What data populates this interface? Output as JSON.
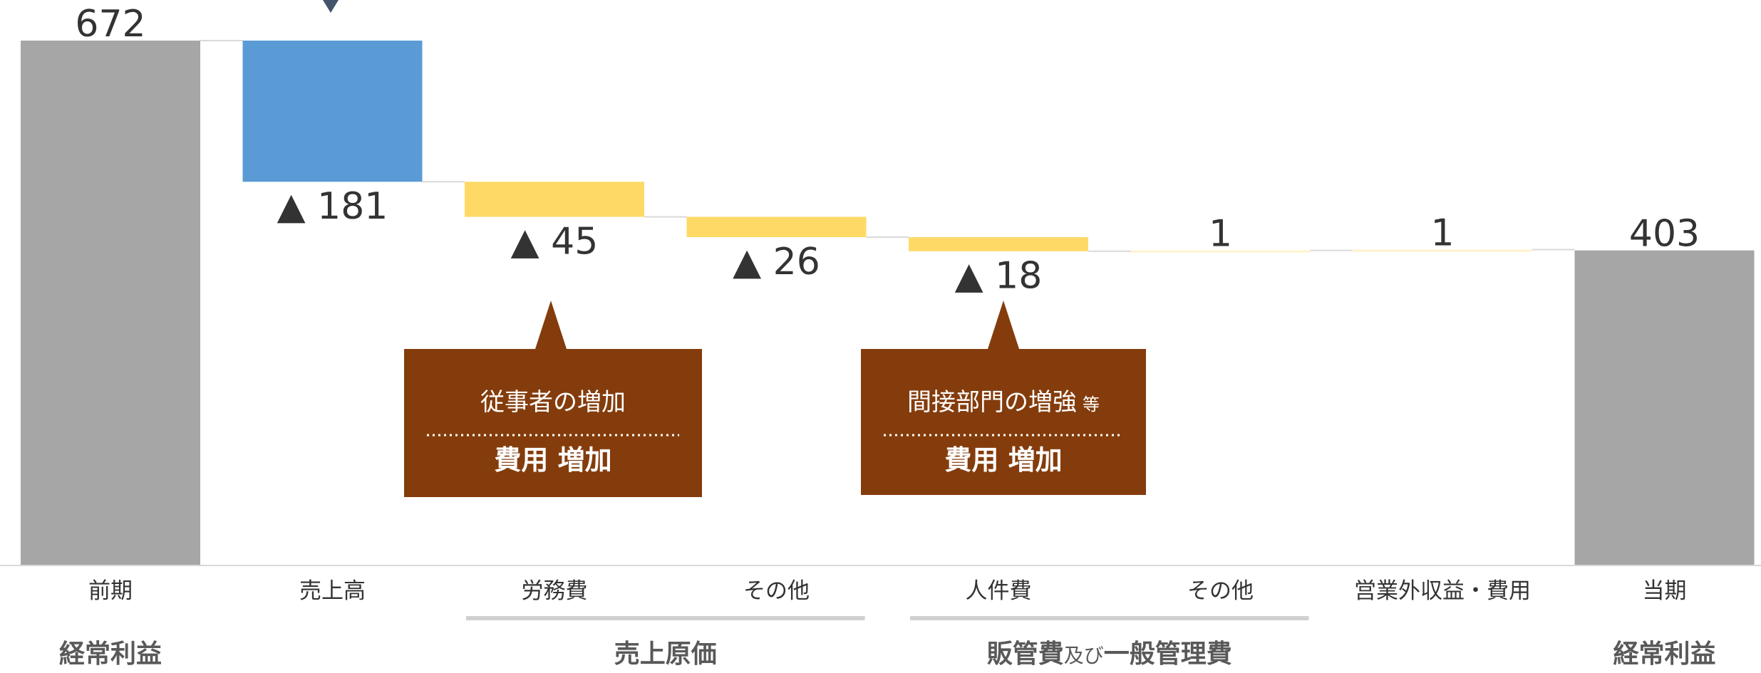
{
  "chart_data": {
    "type": "waterfall",
    "title": "",
    "ylim": [
      0,
      700
    ],
    "grid": false,
    "bars": [
      {
        "category": "前期",
        "value": 672,
        "kind": "total",
        "label": "672"
      },
      {
        "category": "売上高",
        "value": -181,
        "kind": "delta",
        "label": "▲ 181"
      },
      {
        "category": "労務費",
        "value": -45,
        "kind": "delta",
        "label": "▲ 45"
      },
      {
        "category": "その他",
        "value": -26,
        "kind": "delta",
        "label": "▲ 26"
      },
      {
        "category": "人件費",
        "value": -18,
        "kind": "delta",
        "label": "▲ 18"
      },
      {
        "category": "その他",
        "value": 1,
        "kind": "delta",
        "label": "1"
      },
      {
        "category": "営業外収益・費用",
        "value": 1,
        "kind": "delta",
        "label": "1"
      },
      {
        "category": "当期",
        "value": 403,
        "kind": "total",
        "label": "403"
      }
    ],
    "colors": {
      "total": "#a6a6a6",
      "sales": "#5b9bd5",
      "cost": "#ffd966",
      "small": "#fff2cc",
      "callout": "#843c0c",
      "connector": "#d9d9d9",
      "axis": "#d9d9d9",
      "group_line": "#d0d0d0",
      "text": "#333333",
      "arrow": "#44546a"
    },
    "groups": [
      {
        "label": "経常利益",
        "from": 0,
        "to": 0
      },
      {
        "label": "売上原価",
        "from": 2,
        "to": 3
      },
      {
        "label": "販管費",
        "suffix": "及び",
        "label2": "一般管理費",
        "from": 4,
        "to": 5
      },
      {
        "label": "経常利益",
        "from": 7,
        "to": 7
      }
    ],
    "callouts": [
      {
        "line1": "従事者の増加",
        "line2": "費用 増加",
        "target": 2
      },
      {
        "line1": "間接部門の増強",
        "suffix": "等",
        "line2": "費用 増加",
        "target": 4
      }
    ]
  }
}
